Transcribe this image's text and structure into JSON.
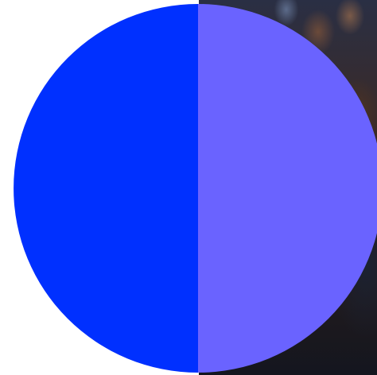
{
  "chart_data": {
    "type": "pie",
    "title": "",
    "slices": [
      {
        "label": "",
        "value": 50,
        "color": "#0030ff"
      },
      {
        "label": "",
        "value": 50,
        "color": "#6a63ff"
      }
    ],
    "legend": "none"
  },
  "background": {
    "image": "crowd-photo"
  }
}
